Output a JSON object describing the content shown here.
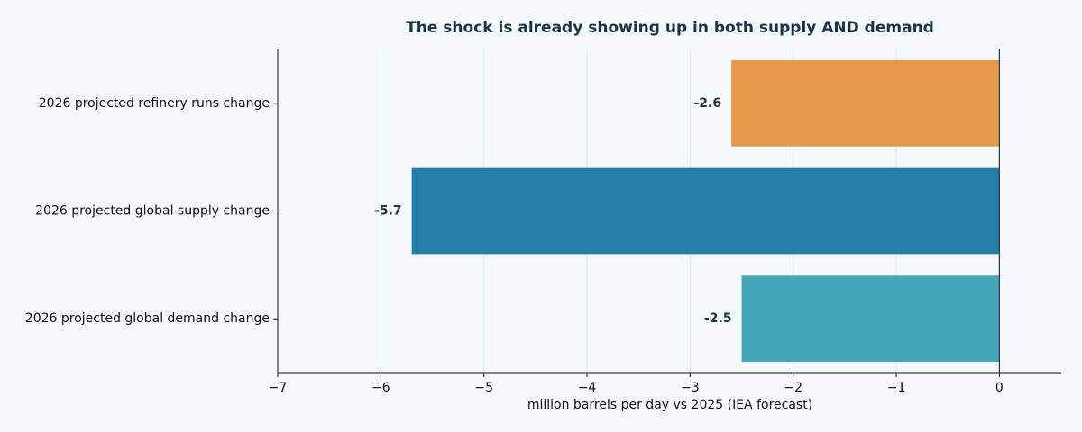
{
  "chart_data": {
    "type": "bar",
    "orientation": "horizontal",
    "title": "The shock is already showing up in both supply AND demand",
    "xlabel": "million barrels per day vs 2025 (IEA forecast)",
    "ylabel": "",
    "categories": [
      "2026 projected refinery runs change",
      "2026 projected global supply change",
      "2026 projected global demand change"
    ],
    "values": [
      -2.6,
      -5.7,
      -2.5
    ],
    "data_labels": [
      "-2.6",
      "-5.7",
      "-2.5"
    ],
    "colors": [
      "#e59a4b",
      "#247ea8",
      "#43a6bb"
    ],
    "xlim": [
      -7,
      0.6
    ],
    "xticks": [
      -7,
      -6,
      -5,
      -4,
      -3,
      -2,
      -1,
      0
    ],
    "xtick_labels": [
      "−7",
      "−6",
      "−5",
      "−4",
      "−3",
      "−2",
      "−1",
      "0"
    ],
    "grid": "vertical",
    "legend": "none"
  }
}
